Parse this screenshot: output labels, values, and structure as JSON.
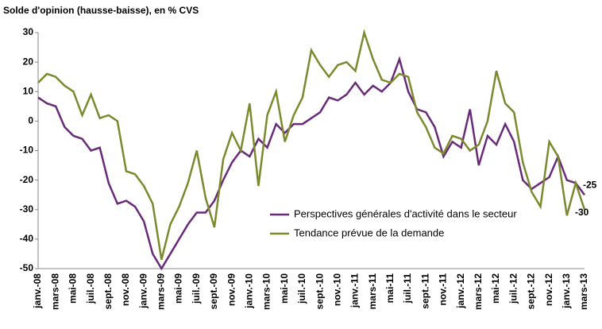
{
  "chart_data": {
    "type": "line",
    "title": "Solde d'opinion (hausse-baisse), en % CVS",
    "categories": [
      "janv.-08",
      null,
      "mars-08",
      null,
      "mai-08",
      null,
      "juil.-08",
      null,
      "sept.-08",
      null,
      "nov.-08",
      null,
      "janv.-09",
      null,
      "mars-09",
      null,
      "mai-09",
      null,
      "juil.-09",
      null,
      "sept.-09",
      null,
      "nov.-09",
      null,
      "janv.-10",
      null,
      "mars-10",
      null,
      "mai-10",
      null,
      "juil.-10",
      null,
      "sept.-10",
      null,
      "nov.-10",
      null,
      "janv.-11",
      null,
      "mars-11",
      null,
      "mai-11",
      null,
      "juil.-11",
      null,
      "sept.-11",
      null,
      "nov.-11",
      null,
      "janv.-12",
      null,
      "mars-12",
      null,
      "mai-12",
      null,
      "juil.-12",
      null,
      "sept.-12",
      null,
      "nov.-12",
      null,
      "janv.-13",
      null,
      "mars-13"
    ],
    "series": [
      {
        "name": "Perspectives générales d'activité dans le secteur",
        "color": "#6a2a7a",
        "values": [
          8,
          6,
          5,
          -2,
          -5,
          -6,
          -10,
          -9,
          -21,
          -28,
          -27,
          -29,
          -34,
          -45,
          -50,
          -45,
          -40,
          -35,
          -31,
          -31,
          -27,
          -20,
          -14,
          -10,
          -12,
          -6,
          -9,
          -1,
          -4,
          -1,
          -1,
          1,
          3,
          8,
          7,
          9,
          13,
          9,
          12,
          10,
          13,
          21,
          10,
          4,
          3,
          -2,
          -12,
          -7,
          -9,
          4,
          -15,
          -5,
          -8,
          -1,
          -7,
          -20,
          -23,
          -21,
          -19,
          -12,
          -20,
          -21,
          -25
        ]
      },
      {
        "name": "Tendance prévue de la demande",
        "color": "#7b8a2e",
        "values": [
          13,
          16,
          15,
          12,
          10,
          2,
          9,
          1,
          2,
          0,
          -17,
          -18,
          -22,
          -28,
          -47,
          -35,
          -29,
          -21,
          -10,
          -26,
          -36,
          -13,
          -4,
          -10,
          6,
          -22,
          2,
          10,
          -7,
          2,
          8,
          24,
          19,
          15,
          19,
          20,
          17,
          30,
          21,
          14,
          13,
          16,
          15,
          3,
          -2,
          -9,
          -11,
          -5,
          -6,
          -10,
          -8,
          0,
          17,
          6,
          3,
          -14,
          -24,
          -29,
          -7,
          -12,
          -32,
          -21,
          -30
        ]
      }
    ],
    "ylim": [
      -50,
      30
    ],
    "yticks": [
      -50,
      -40,
      -30,
      -20,
      -10,
      0,
      10,
      20,
      30
    ],
    "grid": false,
    "legend": "center-right"
  }
}
